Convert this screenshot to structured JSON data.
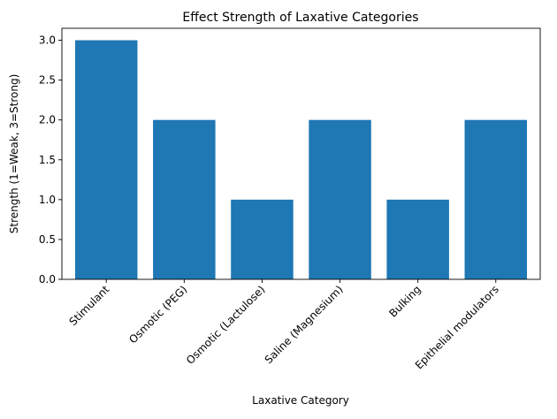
{
  "chart_data": {
    "type": "bar",
    "title": "Effect Strength of Laxative Categories",
    "xlabel": "Laxative Category",
    "ylabel": "Strength (1=Weak, 3=Strong)",
    "categories": [
      "Stimulant",
      "Osmotic (PEG)",
      "Osmotic (Lactulose)",
      "Saline (Magnesium)",
      "Bulking",
      "Epithelial modulators"
    ],
    "values": [
      3,
      2,
      1,
      2,
      1,
      2
    ],
    "ylim": [
      0,
      3.15
    ],
    "yticks": [
      "0.0",
      "0.5",
      "1.0",
      "1.5",
      "2.0",
      "2.5",
      "3.0"
    ],
    "grid": false,
    "bar_color": "#1f77b4"
  }
}
